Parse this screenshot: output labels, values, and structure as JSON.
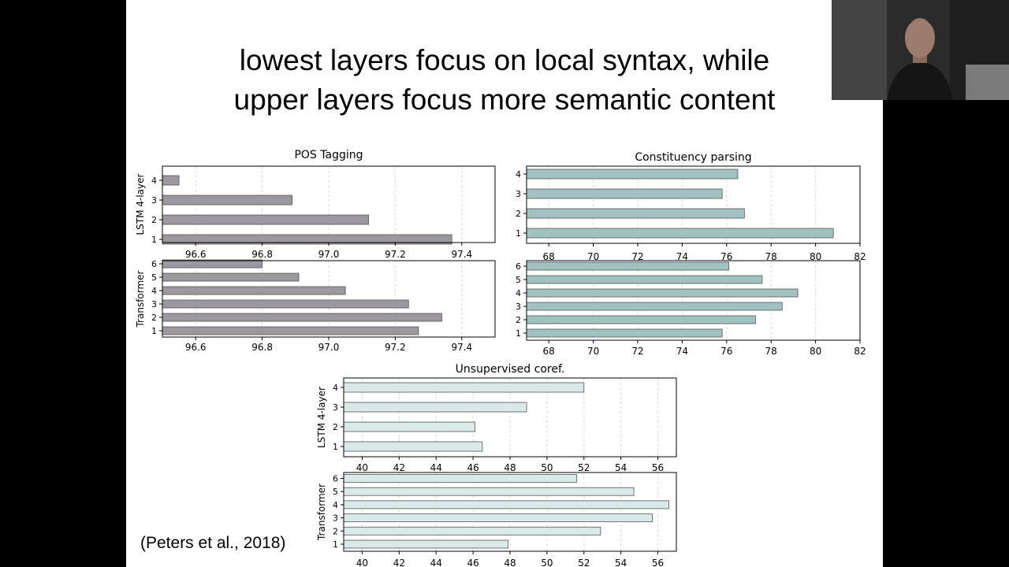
{
  "slide": {
    "title_lines": [
      "lowest layers focus on local syntax, while",
      "upper layers focus more semantic content"
    ],
    "citation": "(Peters et al., 2018)"
  },
  "chart_data": [
    {
      "type": "bar",
      "orientation": "horizontal",
      "title": "POS Tagging",
      "color": "#9b98a0",
      "panels": [
        {
          "ylabel": "LSTM 4-layer",
          "categories": [
            "1",
            "2",
            "3",
            "4"
          ],
          "values": [
            97.37,
            97.12,
            96.89,
            96.55
          ],
          "xlim": [
            96.5,
            97.5
          ],
          "xticks": [
            "96.6",
            "96.8",
            "97.0",
            "97.2",
            "97.4"
          ]
        },
        {
          "ylabel": "Transformer",
          "categories": [
            "1",
            "2",
            "3",
            "4",
            "5",
            "6"
          ],
          "values": [
            97.27,
            97.34,
            97.24,
            97.05,
            96.91,
            96.8
          ],
          "xlim": [
            96.5,
            97.5
          ],
          "xticks": [
            "96.6",
            "96.8",
            "97.0",
            "97.2",
            "97.4"
          ]
        }
      ]
    },
    {
      "type": "bar",
      "orientation": "horizontal",
      "title": "Constituency parsing",
      "color": "#a1c2c0",
      "panels": [
        {
          "ylabel": "",
          "categories": [
            "1",
            "2",
            "3",
            "4"
          ],
          "values": [
            80.8,
            76.8,
            75.8,
            76.5
          ],
          "xlim": [
            67,
            82
          ],
          "xticks": [
            "68",
            "70",
            "72",
            "74",
            "76",
            "78",
            "80",
            "82"
          ]
        },
        {
          "ylabel": "",
          "categories": [
            "1",
            "2",
            "3",
            "4",
            "5",
            "6"
          ],
          "values": [
            75.8,
            77.3,
            78.5,
            79.2,
            77.6,
            76.1
          ],
          "xlim": [
            67,
            82
          ],
          "xticks": [
            "68",
            "70",
            "72",
            "74",
            "76",
            "78",
            "80",
            "82"
          ]
        }
      ]
    },
    {
      "type": "bar",
      "orientation": "horizontal",
      "title": "Unsupervised coref.",
      "color": "#daeae8",
      "panels": [
        {
          "ylabel": "LSTM 4-layer",
          "categories": [
            "1",
            "2",
            "3",
            "4"
          ],
          "values": [
            46.5,
            46.1,
            48.9,
            52.0
          ],
          "xlim": [
            39,
            57
          ],
          "xticks": [
            "40",
            "42",
            "44",
            "46",
            "48",
            "50",
            "52",
            "54",
            "56"
          ]
        },
        {
          "ylabel": "Transformer",
          "categories": [
            "1",
            "2",
            "3",
            "4",
            "5",
            "6"
          ],
          "values": [
            47.9,
            52.9,
            55.7,
            56.6,
            54.7,
            51.6
          ],
          "xlim": [
            39,
            57
          ],
          "xticks": [
            "40",
            "42",
            "44",
            "46",
            "48",
            "50",
            "52",
            "54",
            "56"
          ]
        }
      ]
    }
  ]
}
